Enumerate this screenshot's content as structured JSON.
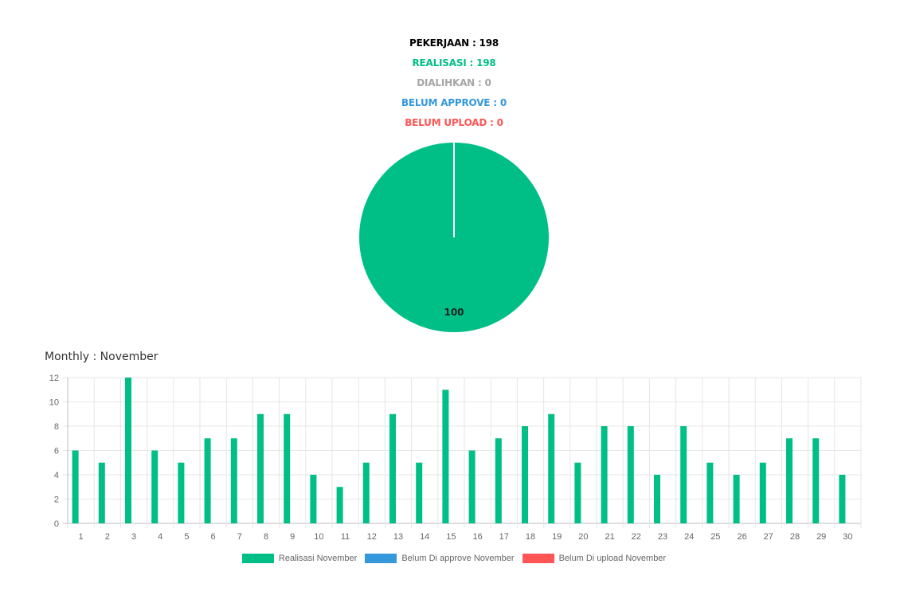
{
  "summary": {
    "pekerjaan": "PEKERJAAN : 198",
    "realisasi": "REALISASI : 198",
    "dialihkan": "DIALIHKAN : 0",
    "belum_approve": "BELUM APPROVE : 0",
    "belum_upload": "BELUM UPLOAD : 0"
  },
  "colors": {
    "pekerjaan": "#000000",
    "realisasi": "#00bf86",
    "dialihkan": "#a6a6a6",
    "belum_approve": "#3498db",
    "belum_upload": "#ff5555"
  },
  "monthly_title": "Monthly : November",
  "chart_data": [
    {
      "type": "pie",
      "slices": [
        {
          "label": "Realisasi",
          "value": 100,
          "color": "#00bf86"
        }
      ],
      "data_labels": [
        "100"
      ]
    },
    {
      "type": "bar",
      "categories": [
        "1",
        "2",
        "3",
        "4",
        "5",
        "6",
        "7",
        "8",
        "9",
        "10",
        "11",
        "12",
        "13",
        "14",
        "15",
        "16",
        "17",
        "18",
        "19",
        "20",
        "21",
        "22",
        "23",
        "24",
        "25",
        "26",
        "27",
        "28",
        "29",
        "30"
      ],
      "series": [
        {
          "name": "Realisasi November",
          "color": "#00bf86",
          "values": [
            6,
            5,
            12,
            6,
            5,
            7,
            7,
            9,
            9,
            4,
            3,
            5,
            9,
            5,
            11,
            6,
            7,
            8,
            9,
            5,
            8,
            8,
            4,
            8,
            5,
            4,
            5,
            7,
            7,
            4
          ]
        },
        {
          "name": "Belum Di approve November",
          "color": "#3498db",
          "values": [
            0,
            0,
            0,
            0,
            0,
            0,
            0,
            0,
            0,
            0,
            0,
            0,
            0,
            0,
            0,
            0,
            0,
            0,
            0,
            0,
            0,
            0,
            0,
            0,
            0,
            0,
            0,
            0,
            0,
            0
          ]
        },
        {
          "name": "Belum Di upload November",
          "color": "#ff5555",
          "values": [
            0,
            0,
            0,
            0,
            0,
            0,
            0,
            0,
            0,
            0,
            0,
            0,
            0,
            0,
            0,
            0,
            0,
            0,
            0,
            0,
            0,
            0,
            0,
            0,
            0,
            0,
            0,
            0,
            0,
            0
          ]
        }
      ],
      "ylim": [
        0,
        12
      ],
      "yticks": [
        "0",
        "2",
        "4",
        "6",
        "8",
        "10",
        "12"
      ],
      "grid": true,
      "legend_position": "bottom"
    }
  ]
}
